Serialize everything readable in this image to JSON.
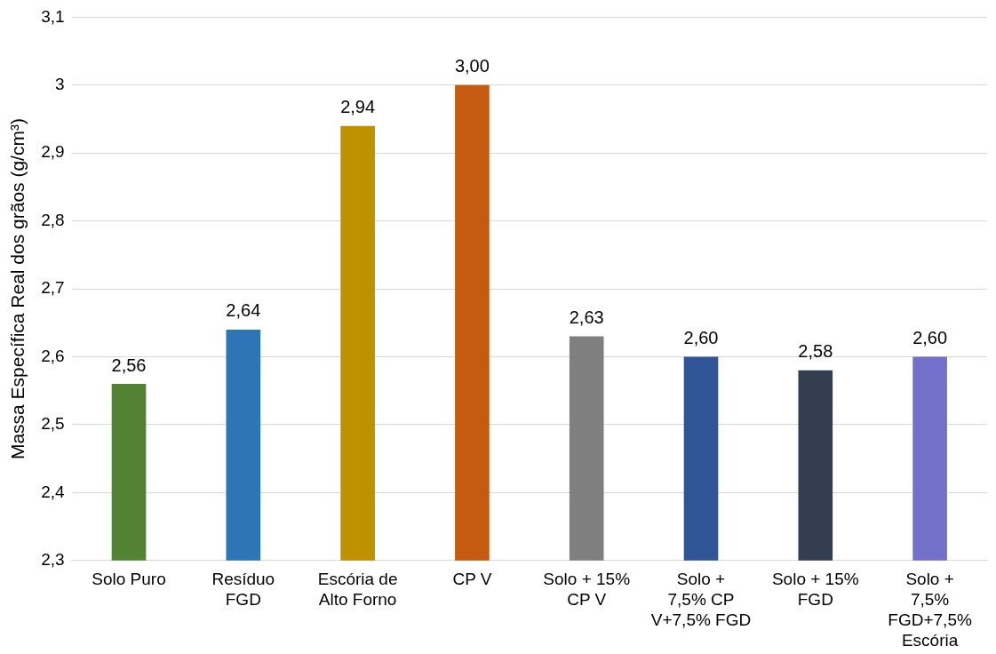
{
  "chart_data": {
    "type": "bar",
    "ylabel": "Massa Específica Real dos grãos (g/cm³)",
    "categories": [
      "Solo Puro",
      "Resíduo FGD",
      "Escória de Alto Forno",
      "CP V",
      "Solo + 15% CP V",
      "Solo + 7,5% CP V+7,5% FGD",
      "Solo + 15% FGD",
      "Solo + 7,5% FGD+7,5% Escória"
    ],
    "values": [
      2.56,
      2.64,
      2.94,
      3.0,
      2.63,
      2.6,
      2.58,
      2.6
    ],
    "value_labels": [
      "2,56",
      "2,64",
      "2,94",
      "3,00",
      "2,63",
      "2,60",
      "2,58",
      "2,60"
    ],
    "colors": [
      "#548235",
      "#2e75b6",
      "#bf9000",
      "#c55a11",
      "#7f7f7f",
      "#2f5597",
      "#333f50",
      "#7370c9"
    ],
    "ylim": [
      2.3,
      3.1
    ],
    "yticks": [
      {
        "value": 2.3,
        "label": "2,3"
      },
      {
        "value": 2.4,
        "label": "2,4"
      },
      {
        "value": 2.5,
        "label": "2,5"
      },
      {
        "value": 2.6,
        "label": "2,6"
      },
      {
        "value": 2.7,
        "label": "2,7"
      },
      {
        "value": 2.8,
        "label": "2,8"
      },
      {
        "value": 2.9,
        "label": "2,9"
      },
      3,
      {
        "value": 3.1,
        "label": "3,1"
      }
    ],
    "grid": "y",
    "legend": false
  }
}
